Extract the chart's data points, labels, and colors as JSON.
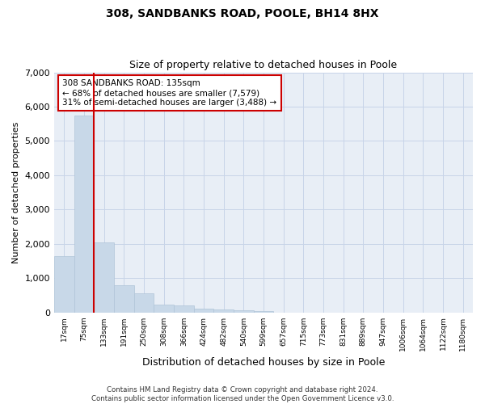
{
  "title": "308, SANDBANKS ROAD, POOLE, BH14 8HX",
  "subtitle": "Size of property relative to detached houses in Poole",
  "xlabel": "Distribution of detached houses by size in Poole",
  "ylabel": "Number of detached properties",
  "bar_color": "#c8d8e8",
  "bar_edge_color": "#b0c4d8",
  "grid_color": "#c8d4e8",
  "bg_color": "#e8eef6",
  "bin_labels": [
    "17sqm",
    "75sqm",
    "133sqm",
    "191sqm",
    "250sqm",
    "308sqm",
    "366sqm",
    "424sqm",
    "482sqm",
    "540sqm",
    "599sqm",
    "657sqm",
    "715sqm",
    "773sqm",
    "831sqm",
    "889sqm",
    "947sqm",
    "1006sqm",
    "1064sqm",
    "1122sqm",
    "1180sqm"
  ],
  "bar_values": [
    1650,
    5750,
    2050,
    800,
    550,
    230,
    200,
    120,
    90,
    65,
    50,
    0,
    0,
    0,
    0,
    0,
    0,
    0,
    0,
    0,
    0
  ],
  "vline_color": "#cc0000",
  "annotation_text": "308 SANDBANKS ROAD: 135sqm\n← 68% of detached houses are smaller (7,579)\n31% of semi-detached houses are larger (3,488) →",
  "annotation_box_color": "white",
  "annotation_box_edge": "#cc0000",
  "ylim": [
    0,
    7000
  ],
  "yticks": [
    0,
    1000,
    2000,
    3000,
    4000,
    5000,
    6000,
    7000
  ],
  "footer_line1": "Contains HM Land Registry data © Crown copyright and database right 2024.",
  "footer_line2": "Contains public sector information licensed under the Open Government Licence v3.0."
}
